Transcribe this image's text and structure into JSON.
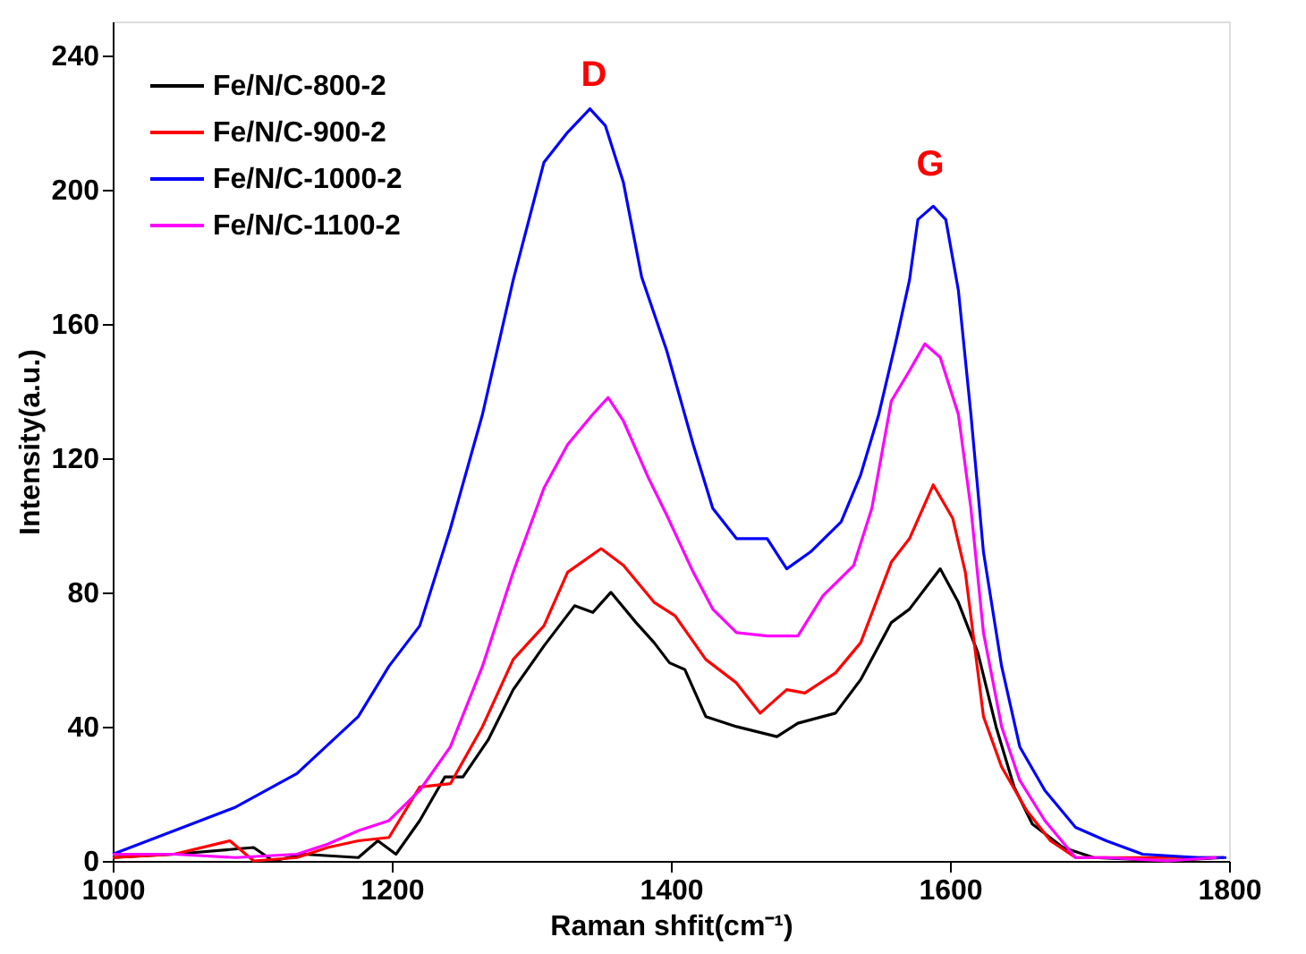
{
  "chart_data": {
    "type": "line",
    "xlabel": "Raman shfit(cm⁻¹)",
    "ylabel": "Intensity(a.u.)",
    "xlim": [
      1000,
      1800
    ],
    "xticks": [
      1000,
      1200,
      1400,
      1600,
      1800
    ],
    "ylim": [
      0,
      250
    ],
    "yticks": [
      0,
      40,
      80,
      120,
      160,
      200,
      240
    ],
    "grid": false,
    "legend": "top left",
    "marker": "none",
    "line_style": "solid",
    "annotations": [
      "D",
      "G"
    ],
    "series": [
      {
        "name": "Fe/N/C-800-2",
        "color": "#000000",
        "x": [
          1000,
          1044,
          1101,
          1115,
          1137,
          1176,
          1190,
          1203,
          1220,
          1238,
          1251,
          1269,
          1287,
          1309,
          1331,
          1344,
          1357,
          1375,
          1388,
          1399,
          1410,
          1425,
          1447,
          1476,
          1491,
          1518,
          1536,
          1558,
          1571,
          1593,
          1606,
          1620,
          1633,
          1646,
          1659,
          1681,
          1703,
          1756,
          1796
        ],
        "values": [
          1,
          2,
          4,
          0,
          2,
          1,
          6,
          2,
          12,
          25,
          25,
          36,
          51,
          64,
          76,
          74,
          80,
          71,
          65,
          59,
          57,
          43,
          40,
          37,
          41,
          44,
          54,
          71,
          75,
          87,
          77,
          62,
          40,
          22,
          11,
          4,
          1,
          0,
          1
        ]
      },
      {
        "name": "Fe/N/C-900-2",
        "color": "#ff0000",
        "x": [
          1000,
          1044,
          1084,
          1101,
          1132,
          1154,
          1176,
          1198,
          1220,
          1242,
          1265,
          1287,
          1309,
          1326,
          1350,
          1366,
          1388,
          1403,
          1425,
          1447,
          1464,
          1483,
          1496,
          1518,
          1536,
          1558,
          1571,
          1588,
          1602,
          1611,
          1624,
          1637,
          1655,
          1672,
          1690,
          1734,
          1796
        ],
        "values": [
          1,
          2,
          6,
          0,
          1,
          4,
          6,
          7,
          22,
          23,
          40,
          60,
          70,
          86,
          93,
          88,
          77,
          73,
          60,
          53,
          44,
          51,
          50,
          56,
          65,
          89,
          96,
          112,
          102,
          86,
          43,
          28,
          15,
          6,
          1,
          1,
          1
        ]
      },
      {
        "name": "Fe/N/C-1000-2",
        "color": "#0000ff",
        "x": [
          1000,
          1044,
          1088,
          1132,
          1176,
          1198,
          1220,
          1242,
          1265,
          1287,
          1309,
          1326,
          1342,
          1353,
          1366,
          1379,
          1397,
          1416,
          1430,
          1447,
          1469,
          1483,
          1500,
          1522,
          1536,
          1549,
          1562,
          1571,
          1577,
          1588,
          1597,
          1606,
          1615,
          1624,
          1637,
          1650,
          1668,
          1690,
          1712,
          1738,
          1778,
          1798
        ],
        "values": [
          2,
          9,
          16,
          26,
          43,
          58,
          70,
          99,
          133,
          173,
          208,
          217,
          224,
          219,
          202,
          174,
          152,
          124,
          105,
          96,
          96,
          87,
          92,
          101,
          115,
          133,
          156,
          173,
          191,
          195,
          191,
          170,
          133,
          92,
          58,
          34,
          21,
          10,
          6,
          2,
          1,
          1
        ]
      },
      {
        "name": "Fe/N/C-1100-2",
        "color": "#ff00ff",
        "x": [
          1000,
          1044,
          1088,
          1132,
          1154,
          1176,
          1198,
          1220,
          1242,
          1265,
          1287,
          1309,
          1326,
          1344,
          1355,
          1366,
          1384,
          1397,
          1416,
          1430,
          1447,
          1469,
          1491,
          1509,
          1531,
          1544,
          1558,
          1571,
          1582,
          1593,
          1606,
          1615,
          1624,
          1637,
          1650,
          1668,
          1690,
          1712,
          1756,
          1791
        ],
        "values": [
          2,
          2,
          1,
          2,
          5,
          9,
          12,
          21,
          34,
          58,
          86,
          111,
          124,
          133,
          138,
          131,
          114,
          103,
          86,
          75,
          68,
          67,
          67,
          79,
          88,
          105,
          137,
          146,
          154,
          150,
          133,
          105,
          68,
          40,
          24,
          12,
          1,
          1,
          0,
          1
        ]
      }
    ]
  }
}
